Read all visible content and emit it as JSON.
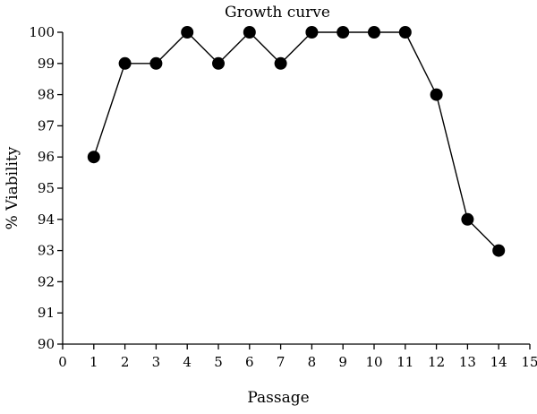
{
  "chart_data": {
    "type": "line",
    "title": "Growth curve",
    "xlabel": "Passage",
    "ylabel": "% Viability",
    "xlim": [
      0,
      15
    ],
    "ylim": [
      90,
      100
    ],
    "xticks": [
      0,
      1,
      2,
      3,
      4,
      5,
      6,
      7,
      8,
      9,
      10,
      11,
      12,
      13,
      14,
      15
    ],
    "yticks": [
      90,
      91,
      92,
      93,
      94,
      95,
      96,
      97,
      98,
      99,
      100
    ],
    "grid": false,
    "legend": "none",
    "marker": "filled-circle",
    "colors": {
      "line": "#000000",
      "marker": "#000000",
      "axis": "#000000"
    },
    "x": [
      1,
      2,
      3,
      4,
      5,
      6,
      7,
      8,
      9,
      10,
      11,
      12,
      13,
      14
    ],
    "y": [
      96,
      99,
      99,
      100,
      99,
      100,
      99,
      100,
      100,
      100,
      100,
      98,
      94,
      93
    ]
  }
}
